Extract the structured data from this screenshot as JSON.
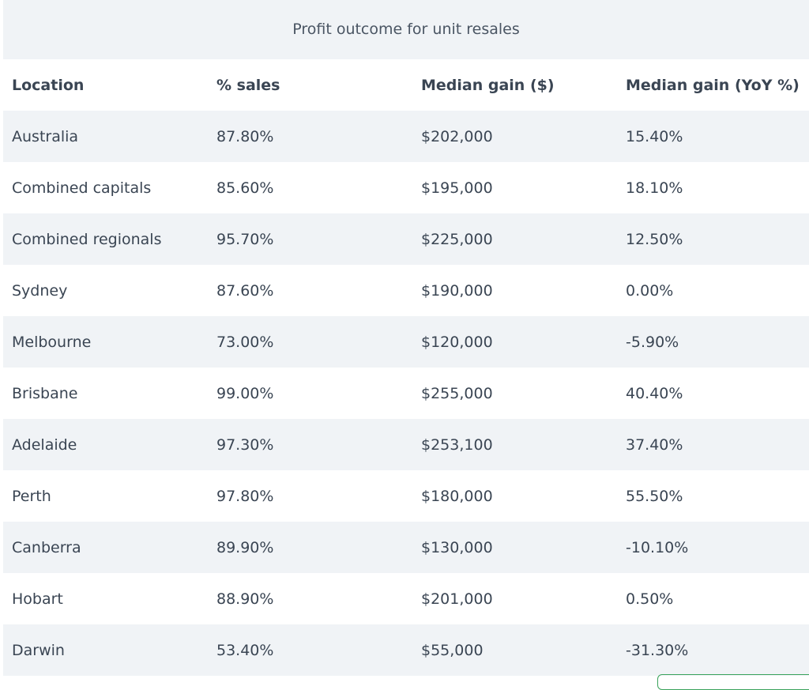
{
  "table": {
    "caption": "Profit outcome for unit resales",
    "header": [
      "Location",
      "% sales",
      "Median gain ($)",
      "Median gain (YoY %)"
    ],
    "rows": [
      [
        "Australia",
        "87.80%",
        "$202,000",
        "15.40%"
      ],
      [
        "Combined capitals",
        "85.60%",
        "$195,000",
        "18.10%"
      ],
      [
        "Combined regionals",
        "95.70%",
        "$225,000",
        "12.50%"
      ],
      [
        "Sydney",
        "87.60%",
        "$190,000",
        "0.00%"
      ],
      [
        "Melbourne",
        "73.00%",
        "$120,000",
        "-5.90%"
      ],
      [
        "Brisbane",
        "99.00%",
        "$255,000",
        "40.40%"
      ],
      [
        "Adelaide",
        "97.30%",
        "$253,100",
        "37.40%"
      ],
      [
        "Perth",
        "97.80%",
        "$180,000",
        "55.50%"
      ],
      [
        "Canberra",
        "89.90%",
        "$130,000",
        "-10.10%"
      ],
      [
        "Hobart",
        "88.90%",
        "$201,000",
        "0.50%"
      ],
      [
        "Darwin",
        "53.40%",
        "$55,000",
        "-31.30%"
      ]
    ]
  }
}
